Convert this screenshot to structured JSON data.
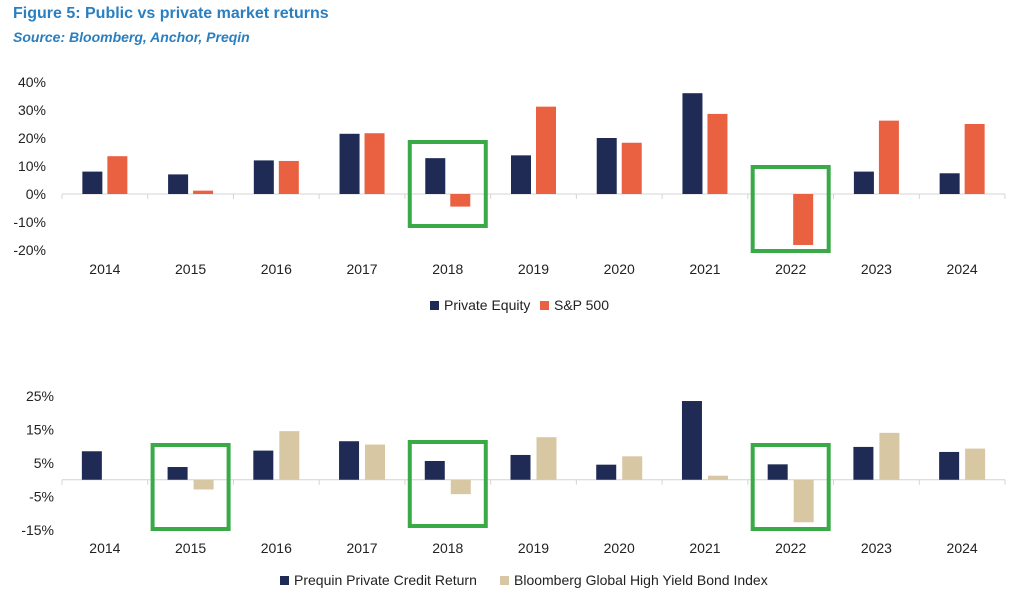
{
  "figure": {
    "title": "Figure 5: Public vs private market returns",
    "source": "Source: Bloomberg, Anchor, Preqin"
  },
  "chart_data": [
    {
      "type": "bar",
      "categories": [
        "2014",
        "2015",
        "2016",
        "2017",
        "2018",
        "2019",
        "2020",
        "2021",
        "2022",
        "2023",
        "2024"
      ],
      "series": [
        {
          "name": "Private Equity",
          "color": "#1f2a55",
          "values": [
            8,
            7,
            12,
            21.5,
            12.8,
            13.8,
            20,
            36,
            null,
            8,
            7.4
          ]
        },
        {
          "name": "S&P 500",
          "color": "#ea6142",
          "values": [
            13.5,
            1.2,
            11.8,
            21.7,
            -4.5,
            31.2,
            18.3,
            28.6,
            -18.2,
            26.2,
            25
          ]
        }
      ],
      "ylim": [
        -20,
        40
      ],
      "yticks": [
        -20,
        -10,
        0,
        10,
        20,
        30,
        40
      ],
      "ytick_labels": [
        "-20%",
        "-10%",
        "0%",
        "10%",
        "20%",
        "30%",
        "40%"
      ],
      "highlighted_categories": [
        "2018",
        "2022"
      ],
      "highlight_color": "#3aaa48",
      "legend_position": "bottom-center",
      "grid": false
    },
    {
      "type": "bar",
      "categories": [
        "2014",
        "2015",
        "2016",
        "2017",
        "2018",
        "2019",
        "2020",
        "2021",
        "2022",
        "2023",
        "2024"
      ],
      "series": [
        {
          "name": "Prequin Private Credit Return",
          "color": "#1f2a55",
          "values": [
            8.5,
            3.8,
            8.7,
            11.5,
            5.6,
            7.4,
            4.5,
            23.5,
            4.6,
            9.8,
            8.3
          ]
        },
        {
          "name": "Bloomberg Global High Yield Bond Index",
          "color": "#d8c7a3",
          "values": [
            null,
            -2.9,
            14.5,
            10.5,
            -4.3,
            12.7,
            7,
            1.2,
            -12.7,
            14,
            9.3
          ]
        }
      ],
      "ylim": [
        -15,
        25
      ],
      "yticks": [
        -15,
        -5,
        5,
        15,
        25
      ],
      "ytick_labels": [
        "-15%",
        "-5%",
        "5%",
        "15%",
        "25%"
      ],
      "highlighted_categories": [
        "2015",
        "2018",
        "2022"
      ],
      "highlight_color": "#3aaa48",
      "legend_position": "bottom-center",
      "grid": false
    }
  ]
}
